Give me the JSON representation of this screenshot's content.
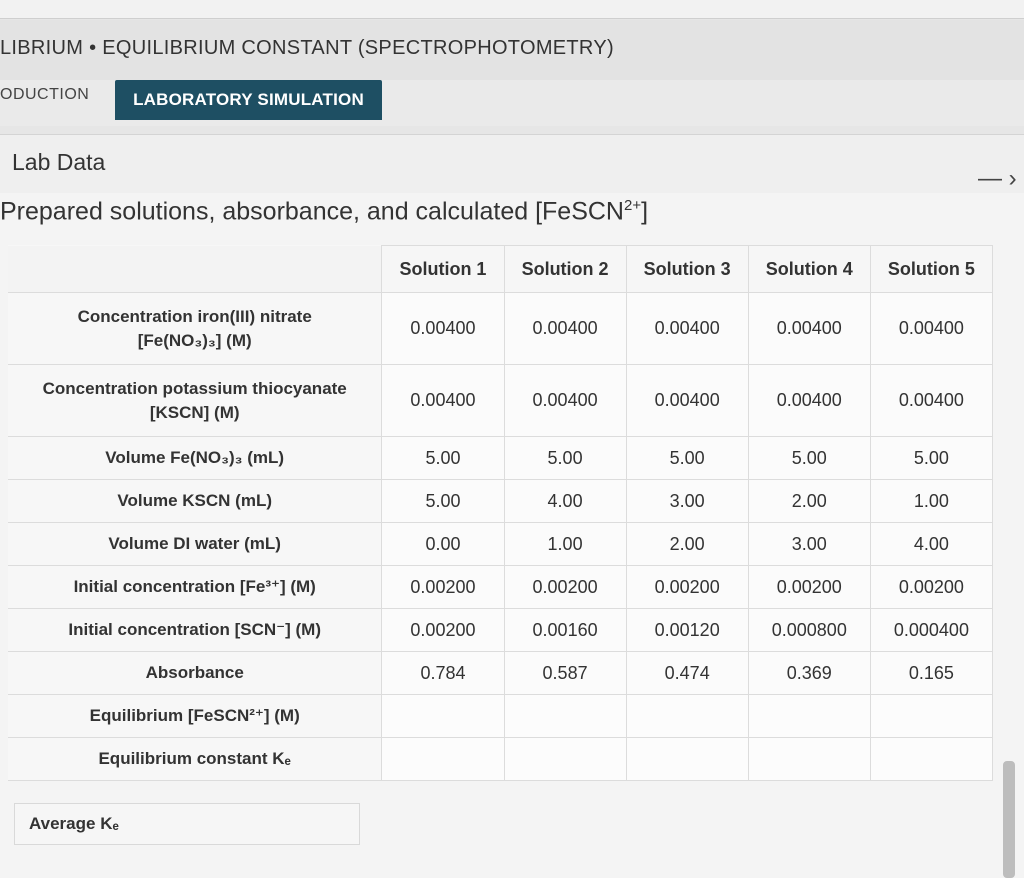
{
  "header": {
    "title": "LIBRIUM • EQUILIBRIUM CONSTANT (SPECTROPHOTOMETRY)"
  },
  "tabs": [
    {
      "label": "ODUCTION"
    },
    {
      "label": "LABORATORY SIMULATION"
    }
  ],
  "panel": {
    "title": "Lab Data",
    "collapse_symbol": "— ›"
  },
  "section": {
    "subtitle": "Prepared solutions, absorbance, and calculated [FeSCN",
    "subtitle_sup": "2+",
    "subtitle_end": "]"
  },
  "table": {
    "columns": [
      "Solution 1",
      "Solution 2",
      "Solution 3",
      "Solution 4",
      "Solution 5"
    ],
    "rows": [
      {
        "label_main": "Concentration iron(III) nitrate",
        "label_sub": "[Fe(NO₃)₃] (M)",
        "values": [
          "0.00400",
          "0.00400",
          "0.00400",
          "0.00400",
          "0.00400"
        ]
      },
      {
        "label_main": "Concentration potassium thiocyanate",
        "label_sub": "[KSCN] (M)",
        "values": [
          "0.00400",
          "0.00400",
          "0.00400",
          "0.00400",
          "0.00400"
        ]
      },
      {
        "label_main": "Volume Fe(NO₃)₃ (mL)",
        "label_sub": "",
        "values": [
          "5.00",
          "5.00",
          "5.00",
          "5.00",
          "5.00"
        ]
      },
      {
        "label_main": "Volume KSCN (mL)",
        "label_sub": "",
        "values": [
          "5.00",
          "4.00",
          "3.00",
          "2.00",
          "1.00"
        ]
      },
      {
        "label_main": "Volume DI water (mL)",
        "label_sub": "",
        "values": [
          "0.00",
          "1.00",
          "2.00",
          "3.00",
          "4.00"
        ]
      },
      {
        "label_main": "Initial concentration [Fe³⁺] (M)",
        "label_sub": "",
        "values": [
          "0.00200",
          "0.00200",
          "0.00200",
          "0.00200",
          "0.00200"
        ]
      },
      {
        "label_main": "Initial concentration [SCN⁻] (M)",
        "label_sub": "",
        "values": [
          "0.00200",
          "0.00160",
          "0.00120",
          "0.000800",
          "0.000400"
        ]
      },
      {
        "label_main": "Absorbance",
        "label_sub": "",
        "values": [
          "0.784",
          "0.587",
          "0.474",
          "0.369",
          "0.165"
        ]
      },
      {
        "label_main": "Equilibrium [FeSCN²⁺] (M)",
        "label_sub": "",
        "values": [
          "",
          "",
          "",
          "",
          ""
        ]
      },
      {
        "label_main": "Equilibrium constant Kₑ",
        "label_sub": "",
        "values": [
          "",
          "",
          "",
          "",
          ""
        ]
      }
    ]
  },
  "average": {
    "label": "Average Kₑ",
    "value": ""
  }
}
